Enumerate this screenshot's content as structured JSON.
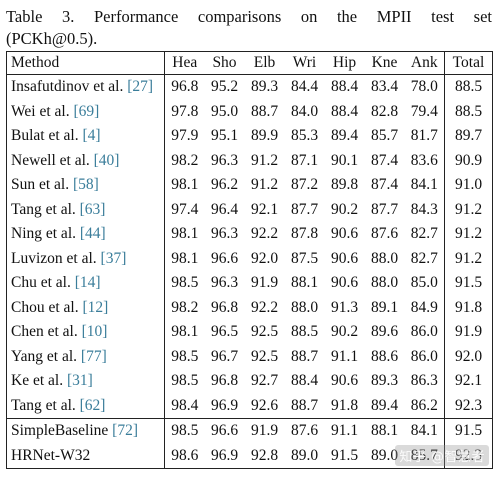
{
  "caption": {
    "line1": "Table 3. Performance comparisons on the MPII test set",
    "line2": "(PCKh@0.5)."
  },
  "table": {
    "headers": [
      "Method",
      "Hea",
      "Sho",
      "Elb",
      "Wri",
      "Hip",
      "Kne",
      "Ank",
      "Total"
    ],
    "rows": [
      {
        "method": "Insafutdinov et al.",
        "ref": "[27]",
        "values": [
          "96.8",
          "95.2",
          "89.3",
          "84.4",
          "88.4",
          "83.4",
          "78.0",
          "88.5"
        ],
        "bold": []
      },
      {
        "method": "Wei et al.",
        "ref": "[69]",
        "values": [
          "97.8",
          "95.0",
          "88.7",
          "84.0",
          "88.4",
          "82.8",
          "79.4",
          "88.5"
        ],
        "bold": []
      },
      {
        "method": "Bulat et al.",
        "ref": "[4]",
        "values": [
          "97.9",
          "95.1",
          "89.9",
          "85.3",
          "89.4",
          "85.7",
          "81.7",
          "89.7"
        ],
        "bold": []
      },
      {
        "method": "Newell et al.",
        "ref": "[40]",
        "values": [
          "98.2",
          "96.3",
          "91.2",
          "87.1",
          "90.1",
          "87.4",
          "83.6",
          "90.9"
        ],
        "bold": []
      },
      {
        "method": "Sun et al.",
        "ref": "[58]",
        "values": [
          "98.1",
          "96.2",
          "91.2",
          "87.2",
          "89.8",
          "87.4",
          "84.1",
          "91.0"
        ],
        "bold": []
      },
      {
        "method": "Tang et al.",
        "ref": "[63]",
        "values": [
          "97.4",
          "96.4",
          "92.1",
          "87.7",
          "90.2",
          "87.7",
          "84.3",
          "91.2"
        ],
        "bold": []
      },
      {
        "method": "Ning et al.",
        "ref": "[44]",
        "values": [
          "98.1",
          "96.3",
          "92.2",
          "87.8",
          "90.6",
          "87.6",
          "82.7",
          "91.2"
        ],
        "bold": []
      },
      {
        "method": "Luvizon et al.",
        "ref": "[37]",
        "values": [
          "98.1",
          "96.6",
          "92.0",
          "87.5",
          "90.6",
          "88.0",
          "82.7",
          "91.2"
        ],
        "bold": []
      },
      {
        "method": "Chu et al.",
        "ref": "[14]",
        "values": [
          "98.5",
          "96.3",
          "91.9",
          "88.1",
          "90.6",
          "88.0",
          "85.0",
          "91.5"
        ],
        "bold": []
      },
      {
        "method": "Chou et al.",
        "ref": "[12]",
        "values": [
          "98.2",
          "96.8",
          "92.2",
          "88.0",
          "91.3",
          "89.1",
          "84.9",
          "91.8"
        ],
        "bold": []
      },
      {
        "method": "Chen et al.",
        "ref": "[10]",
        "values": [
          "98.1",
          "96.5",
          "92.5",
          "88.5",
          "90.2",
          "89.6",
          "86.0",
          "91.9"
        ],
        "bold": [
          5
        ]
      },
      {
        "method": "Yang et al.",
        "ref": "[77]",
        "values": [
          "98.5",
          "96.7",
          "92.5",
          "88.7",
          "91.1",
          "88.6",
          "86.0",
          "92.0"
        ],
        "bold": []
      },
      {
        "method": "Ke et al.",
        "ref": "[31]",
        "values": [
          "98.5",
          "96.8",
          "92.7",
          "88.4",
          "90.6",
          "89.3",
          "86.3",
          "92.1"
        ],
        "bold": [
          6
        ]
      },
      {
        "method": "Tang et al.",
        "ref": "[62]",
        "values": [
          "98.4",
          "96.9",
          "92.6",
          "88.7",
          "91.8",
          "89.4",
          "86.2",
          "92.3"
        ],
        "bold": [
          1,
          4,
          7
        ]
      },
      {
        "method": "SimpleBaseline",
        "ref": "[72]",
        "values": [
          "98.5",
          "96.6",
          "91.9",
          "87.6",
          "91.1",
          "88.1",
          "84.1",
          "91.5"
        ],
        "bold": []
      },
      {
        "method": "HRNet-W32",
        "ref": "",
        "values": [
          "98.6",
          "96.9",
          "92.8",
          "89.0",
          "91.5",
          "89.0",
          "85.7",
          "92.3"
        ],
        "bold": [
          0,
          1,
          2,
          3,
          7
        ]
      }
    ]
  },
  "watermark": "知乎 @智慧者",
  "colors": {
    "ref_link": "#3a7d9a",
    "text": "#111111",
    "rule": "#222222"
  }
}
